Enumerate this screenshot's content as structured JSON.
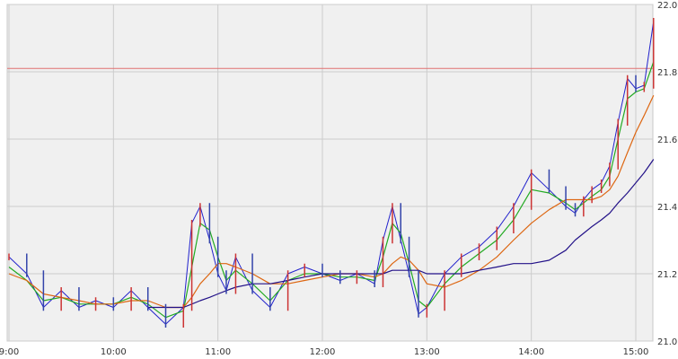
{
  "chart_data": {
    "type": "line",
    "title": "",
    "xlabel": "",
    "ylabel": "",
    "x_ticks": [
      "9:00",
      "10:00",
      "11:00",
      "12:00",
      "13:00",
      "14:00",
      "15:00"
    ],
    "x_range_hours": [
      9.0,
      15.2
    ],
    "y_ticks": [
      "21.0",
      "21.2",
      "21.4",
      "21.6",
      "21.8",
      "22.0"
    ],
    "y_tick_values": [
      21.0,
      21.2,
      21.4,
      21.6,
      21.8,
      22.0
    ],
    "ylim": [
      21.0,
      22.0
    ],
    "grid": true,
    "legend": "none",
    "reference_line": 21.81,
    "price_hours": [
      9.0,
      9.17,
      9.33,
      9.5,
      9.67,
      9.83,
      10.0,
      10.17,
      10.33,
      10.5,
      10.67,
      10.75,
      10.83,
      10.92,
      11.0,
      11.08,
      11.17,
      11.33,
      11.5,
      11.67,
      11.83,
      12.0,
      12.17,
      12.33,
      12.5,
      12.58,
      12.67,
      12.75,
      12.83,
      12.92,
      13.0,
      13.17,
      13.33,
      13.5,
      13.67,
      13.83,
      14.0,
      14.17,
      14.33,
      14.42,
      14.5,
      14.58,
      14.67,
      14.75,
      14.83,
      14.92,
      15.0,
      15.08,
      15.17
    ],
    "series": [
      {
        "color": "#2222cc",
        "values": [
          21.25,
          21.2,
          21.1,
          21.15,
          21.1,
          21.12,
          21.1,
          21.15,
          21.1,
          21.05,
          21.1,
          21.35,
          21.4,
          21.3,
          21.2,
          21.15,
          21.25,
          21.15,
          21.1,
          21.2,
          21.22,
          21.2,
          21.18,
          21.2,
          21.17,
          21.3,
          21.4,
          21.3,
          21.2,
          21.08,
          21.1,
          21.2,
          21.25,
          21.28,
          21.33,
          21.4,
          21.5,
          21.45,
          21.4,
          21.38,
          21.42,
          21.45,
          21.47,
          21.52,
          21.65,
          21.78,
          21.75,
          21.76,
          21.95
        ]
      },
      {
        "color": "#22aa22",
        "values": [
          21.22,
          21.18,
          21.12,
          21.13,
          21.11,
          21.11,
          21.11,
          21.13,
          21.11,
          21.07,
          21.09,
          21.22,
          21.35,
          21.33,
          21.25,
          21.18,
          21.21,
          21.17,
          21.12,
          21.18,
          21.2,
          21.2,
          21.19,
          21.19,
          21.18,
          21.25,
          21.35,
          21.32,
          21.23,
          21.12,
          21.1,
          21.17,
          21.22,
          21.26,
          21.3,
          21.36,
          21.45,
          21.44,
          21.41,
          21.39,
          21.41,
          21.43,
          21.45,
          21.49,
          21.6,
          21.72,
          21.74,
          21.75,
          21.83
        ]
      },
      {
        "color": "#dd6611",
        "values": [
          21.2,
          21.18,
          21.14,
          21.13,
          21.12,
          21.11,
          21.11,
          21.12,
          21.12,
          21.1,
          21.1,
          21.13,
          21.17,
          21.2,
          21.23,
          21.23,
          21.22,
          21.2,
          21.17,
          21.17,
          21.18,
          21.19,
          21.2,
          21.2,
          21.19,
          21.2,
          21.23,
          21.25,
          21.24,
          21.21,
          21.17,
          21.16,
          21.18,
          21.21,
          21.25,
          21.3,
          21.35,
          21.39,
          21.42,
          21.42,
          21.42,
          21.42,
          21.43,
          21.45,
          21.49,
          21.56,
          21.62,
          21.67,
          21.73
        ]
      },
      {
        "color": "#221188",
        "values": [
          null,
          null,
          null,
          null,
          null,
          null,
          null,
          null,
          21.1,
          21.1,
          21.1,
          21.11,
          21.12,
          21.13,
          21.14,
          21.15,
          21.16,
          21.17,
          21.17,
          21.18,
          21.19,
          21.2,
          21.2,
          21.2,
          21.2,
          21.2,
          21.21,
          21.21,
          21.21,
          21.21,
          21.2,
          21.2,
          21.2,
          21.21,
          21.22,
          21.23,
          21.23,
          21.24,
          21.27,
          21.3,
          21.32,
          21.34,
          21.36,
          21.38,
          21.41,
          21.44,
          21.47,
          21.5,
          21.54
        ]
      }
    ]
  }
}
